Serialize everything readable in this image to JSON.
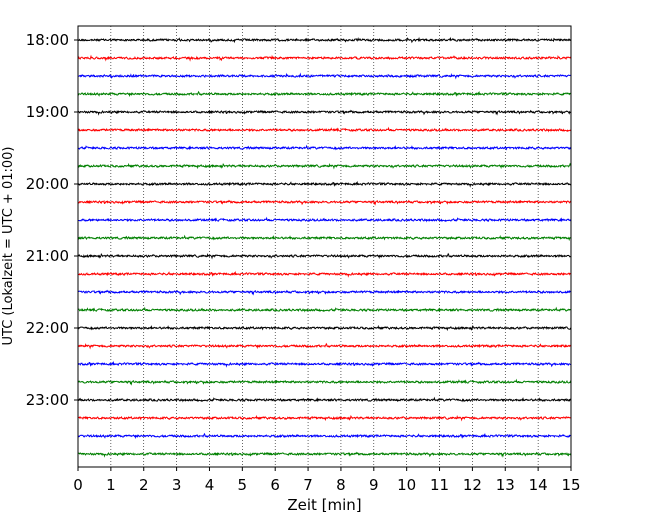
{
  "chart_data": {
    "type": "line",
    "title": "",
    "xlabel": "Zeit  [min]",
    "ylabel": "UTC (Lokalzeit = UTC + 01:00)",
    "xlim": [
      0,
      15
    ],
    "x_ticks": [
      "0",
      "1",
      "2",
      "3",
      "4",
      "5",
      "6",
      "7",
      "8",
      "9",
      "10",
      "11",
      "12",
      "13",
      "14",
      "15"
    ],
    "y_ticks": [
      "18:00",
      "19:00",
      "20:00",
      "21:00",
      "22:00",
      "23:00"
    ],
    "y_tick_values": [
      "18:00",
      "19:00",
      "20:00",
      "21:00",
      "22:00",
      "23:00"
    ],
    "trace_interval_minutes": 15,
    "traces": [
      {
        "start": "18:00",
        "color": "#000000"
      },
      {
        "start": "18:15",
        "color": "#ff0000"
      },
      {
        "start": "18:30",
        "color": "#0000ff"
      },
      {
        "start": "18:45",
        "color": "#008000"
      },
      {
        "start": "19:00",
        "color": "#000000"
      },
      {
        "start": "19:15",
        "color": "#ff0000"
      },
      {
        "start": "19:30",
        "color": "#0000ff"
      },
      {
        "start": "19:45",
        "color": "#008000"
      },
      {
        "start": "20:00",
        "color": "#000000"
      },
      {
        "start": "20:15",
        "color": "#ff0000"
      },
      {
        "start": "20:30",
        "color": "#0000ff"
      },
      {
        "start": "20:45",
        "color": "#008000"
      },
      {
        "start": "21:00",
        "color": "#000000"
      },
      {
        "start": "21:15",
        "color": "#ff0000"
      },
      {
        "start": "21:30",
        "color": "#0000ff"
      },
      {
        "start": "21:45",
        "color": "#008000"
      },
      {
        "start": "22:00",
        "color": "#000000"
      },
      {
        "start": "22:15",
        "color": "#ff0000"
      },
      {
        "start": "22:30",
        "color": "#0000ff"
      },
      {
        "start": "22:45",
        "color": "#008000"
      },
      {
        "start": "23:00",
        "color": "#000000"
      },
      {
        "start": "23:15",
        "color": "#ff0000"
      },
      {
        "start": "23:30",
        "color": "#0000ff"
      },
      {
        "start": "23:45",
        "color": "#008000"
      }
    ],
    "grid": {
      "vertical": true,
      "style": "dotted"
    },
    "legend": "none"
  }
}
